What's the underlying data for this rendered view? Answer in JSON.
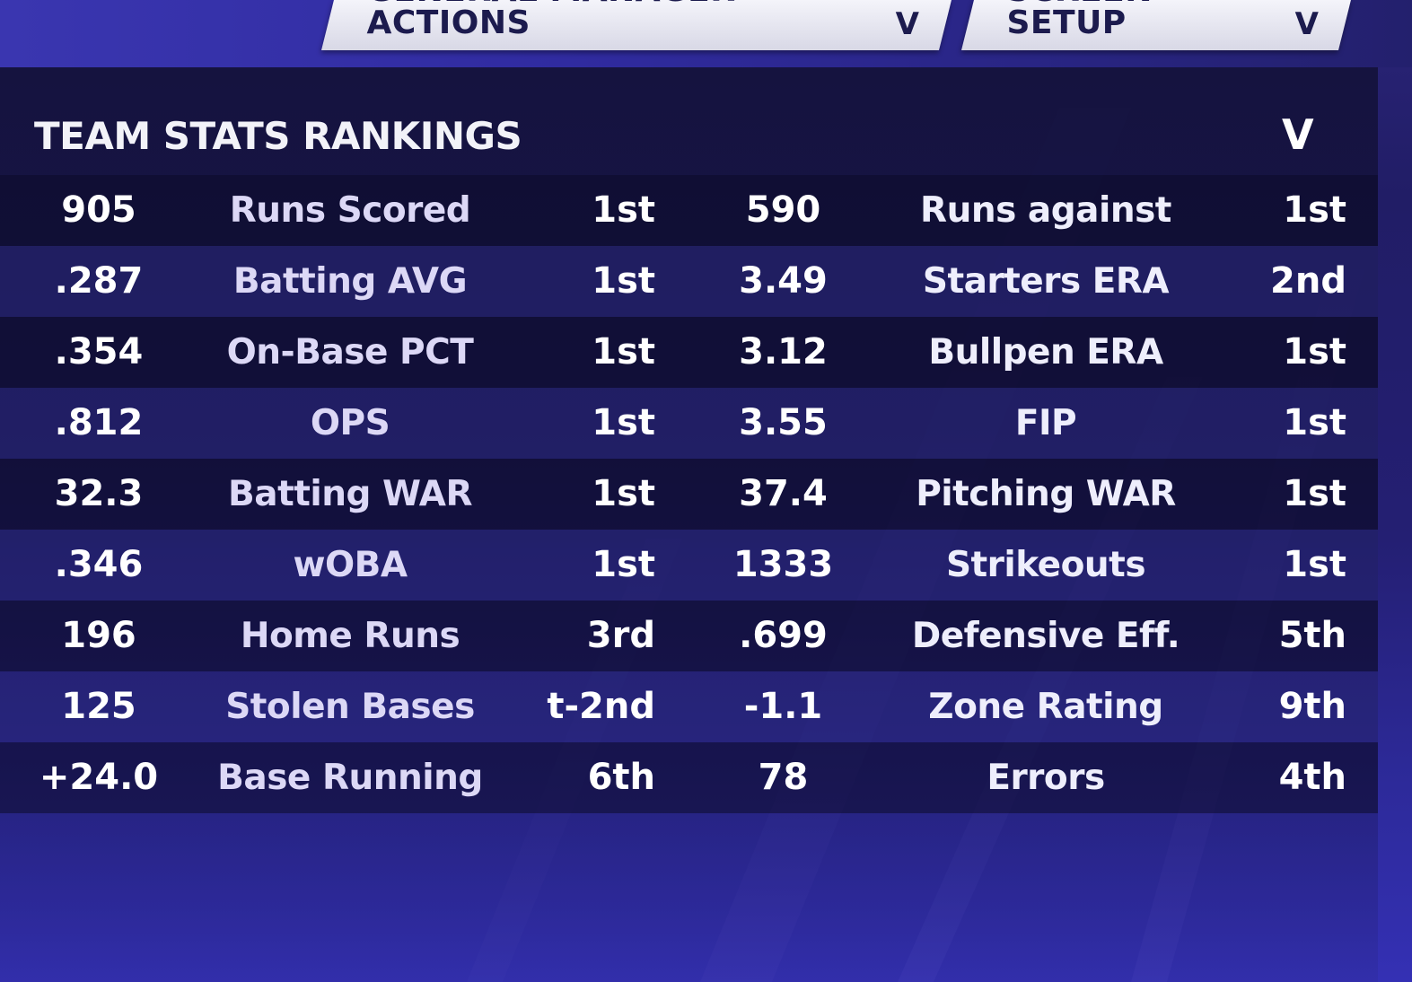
{
  "header": {
    "gm_actions_label": "GENERAL MANAGER ACTIONS",
    "screen_setup_label": "SCREEN SETUP",
    "dropdown_glyph": "V"
  },
  "panel": {
    "title": "TEAM STATS RANKINGS",
    "collapse_glyph": "V"
  },
  "rows": [
    {
      "off_value": "905",
      "off_stat": "Runs Scored",
      "off_rank": "1st",
      "def_value": "590",
      "def_stat": "Runs against",
      "def_rank": "1st"
    },
    {
      "off_value": ".287",
      "off_stat": "Batting AVG",
      "off_rank": "1st",
      "def_value": "3.49",
      "def_stat": "Starters ERA",
      "def_rank": "2nd"
    },
    {
      "off_value": ".354",
      "off_stat": "On-Base PCT",
      "off_rank": "1st",
      "def_value": "3.12",
      "def_stat": "Bullpen ERA",
      "def_rank": "1st"
    },
    {
      "off_value": ".812",
      "off_stat": "OPS",
      "off_rank": "1st",
      "def_value": "3.55",
      "def_stat": "FIP",
      "def_rank": "1st"
    },
    {
      "off_value": "32.3",
      "off_stat": "Batting WAR",
      "off_rank": "1st",
      "def_value": "37.4",
      "def_stat": "Pitching WAR",
      "def_rank": "1st"
    },
    {
      "off_value": ".346",
      "off_stat": "wOBA",
      "off_rank": "1st",
      "def_value": "1333",
      "def_stat": "Strikeouts",
      "def_rank": "1st"
    },
    {
      "off_value": "196",
      "off_stat": "Home Runs",
      "off_rank": "3rd",
      "def_value": ".699",
      "def_stat": "Defensive Eff.",
      "def_rank": "5th"
    },
    {
      "off_value": "125",
      "off_stat": "Stolen Bases",
      "off_rank": "t-2nd",
      "def_value": "-1.1",
      "def_stat": "Zone Rating",
      "def_rank": "9th"
    },
    {
      "off_value": "+24.0",
      "off_stat": "Base Running",
      "off_rank": "6th",
      "def_value": "78",
      "def_stat": "Errors",
      "def_rank": "4th"
    }
  ]
}
